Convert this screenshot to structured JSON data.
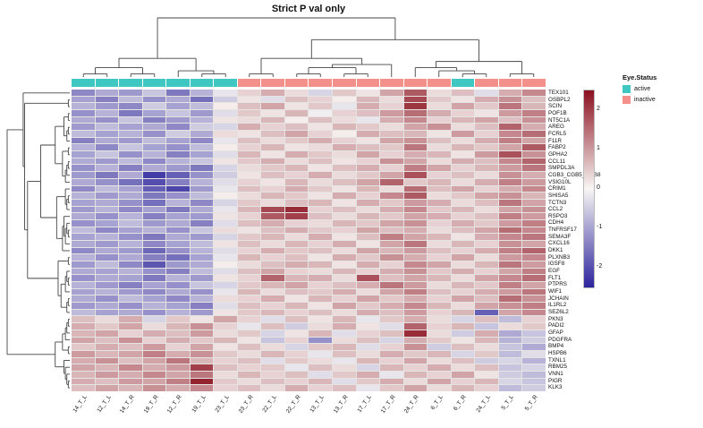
{
  "title": "Strict P val only",
  "legend": {
    "annotation_title": "Eye.Status",
    "items": [
      {
        "label": "active",
        "color": "#3FC7C2"
      },
      {
        "label": "inactive",
        "color": "#F3908C"
      }
    ],
    "scale_ticks": [
      2,
      1,
      0,
      -1,
      -2
    ]
  },
  "colors": {
    "positive": "#8B111F",
    "negative": "#2C249C",
    "mid": "#F8F6F4",
    "grid": "#E6E4E2",
    "dendro": "#444444"
  },
  "chart_data": {
    "type": "heatmap",
    "title": "Strict P val only",
    "scale_min": -2.5,
    "scale_max": 2.5,
    "columns": [
      "14_T_L",
      "12_T_L",
      "14_T_R",
      "19_T_R",
      "12_T_R",
      "19_T_L",
      "23_T_L",
      "23_T_R",
      "22_T_L",
      "22_T_R",
      "13_T_L",
      "13_T_R",
      "17_T_L",
      "17_T_R",
      "24_T_R",
      "6_T_L",
      "6_T_R",
      "24_T_L",
      "5_T_L",
      "5_T_R"
    ],
    "column_status": [
      "active",
      "active",
      "active",
      "active",
      "active",
      "active",
      "active",
      "inactive",
      "inactive",
      "inactive",
      "inactive",
      "inactive",
      "inactive",
      "inactive",
      "inactive",
      "inactive",
      "active",
      "inactive",
      "inactive",
      "inactive"
    ],
    "rows": [
      "TEX101",
      "OSBPL2",
      "SCIN",
      "POF1B",
      "NT5C1A",
      "AREG",
      "FCRL5",
      "F11R",
      "FABP2",
      "GPHA2",
      "CCL11",
      "SMPDL3A",
      "CGB3_CGB5_CGB8",
      "VSIG10L",
      "CRIM1",
      "SHISA5",
      "TCTN3",
      "CCL2",
      "RSPO3",
      "CDH4",
      "TNFRSF17",
      "SEMA3F",
      "CXCL16",
      "DKK1",
      "PLXNB3",
      "IGSF8",
      "EGF",
      "FLT1",
      "PTPRS",
      "WIF1",
      "JCHAIN",
      "IL1RL2",
      "SEZ6L2",
      "PKN3",
      "PADI2",
      "GFAP",
      "PDGFRA",
      "BMP4",
      "HSPB6",
      "TXNL1",
      "RBM25",
      "VNN1",
      "PIGR",
      "KLK3"
    ],
    "values": [
      [
        -1.3,
        -0.9,
        -1.1,
        -0.6,
        -1.5,
        -0.8,
        -0.2,
        0.4,
        0.8,
        0.3,
        -0.4,
        0.5,
        0.2,
        0.9,
        1.7,
        0.3,
        0.6,
        -0.3,
        0.8,
        1.2
      ],
      [
        -1.0,
        -1.4,
        -0.7,
        -1.2,
        -0.9,
        -1.6,
        -0.5,
        0.2,
        -0.3,
        0.6,
        0.4,
        0.1,
        0.7,
        0.3,
        1.9,
        0.5,
        0.2,
        0.8,
        1.1,
        0.6
      ],
      [
        -0.8,
        -1.1,
        -1.3,
        -0.5,
        -1.0,
        -0.7,
        0.1,
        0.6,
        0.9,
        0.2,
        0.5,
        -0.2,
        0.8,
        0.4,
        2.1,
        0.3,
        0.9,
        0.5,
        1.4,
        0.7
      ],
      [
        -1.2,
        -0.8,
        -1.5,
        -1.0,
        -0.6,
        -1.1,
        -0.3,
        0.5,
        0.2,
        0.7,
        -0.1,
        0.4,
        0.6,
        1.0,
        1.5,
        0.8,
        0.4,
        0.2,
        1.0,
        1.3
      ],
      [
        -0.9,
        -1.2,
        -0.6,
        -1.4,
        -1.1,
        -0.8,
        0.2,
        0.3,
        0.7,
        0.1,
        0.6,
        0.3,
        -0.2,
        0.8,
        1.2,
        0.4,
        0.7,
        0.9,
        0.6,
        1.1
      ],
      [
        -1.1,
        -0.7,
        -1.0,
        -0.9,
        -1.3,
        -0.5,
        -0.4,
        0.8,
        0.4,
        0.6,
        0.2,
        0.7,
        0.5,
        0.3,
        0.9,
        1.1,
        0.3,
        0.6,
        1.6,
        0.8
      ],
      [
        -0.7,
        -1.0,
        -0.8,
        -1.2,
        -0.5,
        -0.9,
        0.3,
        0.2,
        0.6,
        0.9,
        0.4,
        0.1,
        0.8,
        0.6,
        0.7,
        0.2,
        1.0,
        0.4,
        1.2,
        1.5
      ],
      [
        -1.4,
        -0.9,
        -1.1,
        -0.7,
        -1.0,
        -1.3,
        -0.2,
        0.6,
        0.3,
        0.5,
        0.8,
        0.4,
        0.2,
        0.9,
        1.1,
        0.6,
        0.3,
        0.8,
        1.3,
        0.9
      ],
      [
        -0.8,
        -1.3,
        -0.6,
        -1.0,
        -1.2,
        -0.7,
        0.1,
        0.4,
        0.7,
        0.2,
        0.3,
        0.8,
        0.6,
        0.5,
        1.4,
        0.3,
        0.7,
        0.5,
        0.9,
        1.7
      ],
      [
        -1.0,
        -0.6,
        -1.2,
        -0.8,
        -1.4,
        -1.0,
        -0.3,
        0.7,
        0.2,
        0.8,
        0.5,
        0.3,
        0.9,
        0.4,
        0.8,
        0.7,
        0.2,
        1.0,
        1.8,
        1.1
      ],
      [
        -0.9,
        -1.1,
        -0.7,
        -1.3,
        -0.8,
        -0.6,
        0.2,
        0.5,
        0.8,
        0.3,
        0.6,
        0.2,
        0.4,
        1.1,
        0.9,
        0.3,
        0.8,
        0.6,
        1.2,
        1.6
      ],
      [
        -1.2,
        -0.8,
        -1.4,
        -0.9,
        -1.1,
        -1.5,
        -0.4,
        0.3,
        0.5,
        0.7,
        0.2,
        0.6,
        0.8,
        0.4,
        1.3,
        0.9,
        0.4,
        0.7,
        1.0,
        1.4
      ],
      [
        -1.1,
        -1.5,
        -0.9,
        -2.2,
        -1.8,
        -1.2,
        -0.5,
        0.2,
        0.6,
        0.4,
        0.8,
        0.3,
        0.5,
        0.9,
        1.8,
        0.4,
        0.6,
        0.3,
        1.1,
        0.8
      ],
      [
        -0.9,
        -1.2,
        -1.6,
        -2.0,
        -1.4,
        -0.8,
        -0.3,
        0.4,
        0.2,
        0.7,
        0.3,
        0.6,
        0.9,
        1.6,
        0.5,
        0.7,
        0.3,
        0.8,
        1.3,
        1.0
      ],
      [
        -1.3,
        -0.7,
        -1.0,
        -1.8,
        -2.1,
        -1.1,
        -0.2,
        0.6,
        0.4,
        0.8,
        0.5,
        0.2,
        0.7,
        0.3,
        1.5,
        0.6,
        0.9,
        0.4,
        0.8,
        1.2
      ],
      [
        -0.8,
        -1.1,
        -0.9,
        -1.5,
        -1.2,
        -0.7,
        0.1,
        0.3,
        0.7,
        0.5,
        0.2,
        0.8,
        0.4,
        1.2,
        1.7,
        0.3,
        0.5,
        0.9,
        1.1,
        0.7
      ],
      [
        -1.0,
        -0.9,
        -1.2,
        -1.6,
        -0.8,
        -1.3,
        -0.4,
        0.5,
        0.3,
        0.6,
        0.7,
        0.2,
        0.8,
        0.5,
        1.0,
        0.8,
        0.3,
        0.6,
        1.4,
        0.9
      ],
      [
        -1.1,
        -0.8,
        -1.3,
        -1.0,
        -1.5,
        -0.9,
        -0.2,
        0.7,
        1.9,
        2.2,
        0.4,
        0.6,
        0.3,
        0.8,
        1.2,
        0.5,
        0.7,
        0.3,
        0.9,
        1.1
      ],
      [
        -0.9,
        -1.2,
        -0.8,
        -1.4,
        -1.0,
        -1.1,
        0.2,
        0.4,
        1.7,
        2.0,
        0.6,
        0.3,
        0.7,
        0.5,
        0.9,
        0.8,
        0.4,
        0.6,
        1.3,
        1.0
      ],
      [
        -1.2,
        -1.0,
        -0.7,
        -1.1,
        -0.9,
        -1.4,
        -0.3,
        0.6,
        0.8,
        0.4,
        0.3,
        0.7,
        0.5,
        0.9,
        1.1,
        0.4,
        0.8,
        0.5,
        1.0,
        1.3
      ],
      [
        -0.7,
        -1.3,
        -1.0,
        -0.8,
        -1.2,
        -0.6,
        0.3,
        0.2,
        0.6,
        0.8,
        0.5,
        0.4,
        0.9,
        0.6,
        0.8,
        0.3,
        0.6,
        0.9,
        1.5,
        1.2
      ],
      [
        -1.0,
        -0.8,
        -1.2,
        -1.5,
        -0.9,
        -1.1,
        -0.4,
        0.5,
        0.7,
        0.3,
        0.8,
        0.2,
        0.6,
        1.3,
        0.9,
        0.7,
        0.2,
        0.8,
        1.2,
        1.4
      ],
      [
        -0.9,
        -1.1,
        -0.8,
        -1.3,
        -1.0,
        -0.7,
        0.2,
        0.6,
        0.3,
        0.7,
        0.4,
        0.8,
        0.2,
        0.9,
        1.4,
        0.3,
        0.7,
        0.4,
        1.1,
        0.9
      ],
      [
        -1.3,
        -0.9,
        -1.1,
        -1.7,
        -1.2,
        -0.8,
        -0.3,
        0.4,
        0.8,
        0.5,
        0.6,
        0.3,
        0.9,
        0.7,
        1.0,
        0.6,
        0.4,
        0.8,
        1.3,
        1.6
      ],
      [
        -0.8,
        -1.2,
        -0.9,
        -1.4,
        -1.6,
        -1.0,
        -0.2,
        0.7,
        0.4,
        0.6,
        0.2,
        0.8,
        0.5,
        1.1,
        0.8,
        0.4,
        0.9,
        0.3,
        1.0,
        1.2
      ],
      [
        -1.1,
        -0.7,
        -1.3,
        -1.9,
        -1.1,
        -0.9,
        0.1,
        0.3,
        0.6,
        0.8,
        0.7,
        0.2,
        0.8,
        0.4,
        1.2,
        0.9,
        0.3,
        0.7,
        1.4,
        1.0
      ],
      [
        -0.9,
        -1.0,
        -0.8,
        -1.2,
        -1.4,
        -0.7,
        -0.3,
        0.6,
        0.9,
        0.4,
        0.3,
        0.7,
        0.4,
        0.8,
        1.1,
        0.5,
        0.8,
        0.4,
        0.9,
        1.3
      ],
      [
        -1.2,
        -0.9,
        -1.0,
        -1.5,
        -0.8,
        -1.1,
        0.2,
        0.4,
        1.6,
        0.7,
        0.8,
        0.3,
        1.8,
        0.6,
        0.9,
        0.7,
        0.3,
        0.9,
        1.2,
        1.5
      ],
      [
        -0.8,
        -1.1,
        -1.4,
        -1.0,
        -1.2,
        -0.6,
        -0.4,
        0.5,
        0.7,
        0.9,
        0.4,
        0.6,
        0.8,
        1.4,
        1.0,
        0.3,
        0.7,
        0.5,
        1.3,
        0.9
      ],
      [
        -1.0,
        -0.8,
        -1.1,
        -1.3,
        -0.9,
        -1.2,
        -0.2,
        0.7,
        0.3,
        0.6,
        0.5,
        0.8,
        0.3,
        0.9,
        1.3,
        0.6,
        0.4,
        0.8,
        1.0,
        1.4
      ],
      [
        -0.9,
        -1.2,
        -0.7,
        -1.0,
        -1.3,
        -0.8,
        0.3,
        0.4,
        0.8,
        0.2,
        0.7,
        0.4,
        0.9,
        0.5,
        0.8,
        0.4,
        0.9,
        0.6,
        1.5,
        1.1
      ],
      [
        -1.1,
        -0.9,
        -1.2,
        -0.8,
        -1.0,
        -1.4,
        -0.3,
        0.6,
        0.4,
        0.7,
        0.2,
        0.9,
        0.5,
        0.8,
        1.2,
        0.7,
        0.3,
        0.9,
        1.1,
        1.3
      ],
      [
        -0.7,
        -1.0,
        -0.9,
        -1.2,
        -0.8,
        -1.1,
        0.2,
        0.5,
        0.7,
        0.4,
        0.6,
        0.3,
        0.8,
        0.6,
        1.0,
        0.4,
        0.7,
        -1.8,
        0.9,
        1.2
      ],
      [
        0.6,
        0.3,
        0.8,
        -0.4,
        0.5,
        0.2,
        0.9,
        0.4,
        -0.3,
        0.6,
        0.2,
        0.7,
        -0.2,
        0.5,
        0.8,
        0.3,
        -0.4,
        0.6,
        -0.7,
        0.4
      ],
      [
        0.8,
        0.5,
        0.9,
        0.3,
        0.7,
        1.1,
        0.4,
        -0.2,
        0.6,
        -0.5,
        0.3,
        0.8,
        0.2,
        -0.3,
        1.6,
        0.4,
        0.7,
        -0.6,
        0.3,
        0.5
      ],
      [
        0.7,
        0.9,
        0.4,
        0.8,
        0.6,
        1.0,
        0.3,
        0.5,
        -0.4,
        0.2,
        0.7,
        -0.3,
        0.4,
        0.6,
        2.2,
        0.3,
        -0.5,
        0.8,
        -0.9,
        -0.6
      ],
      [
        0.9,
        0.6,
        1.1,
        0.4,
        0.8,
        0.5,
        0.7,
        0.2,
        -0.6,
        0.4,
        -1.2,
        0.3,
        0.6,
        -0.4,
        0.8,
        0.5,
        0.2,
        0.7,
        -0.8,
        -0.5
      ],
      [
        0.5,
        0.8,
        0.6,
        1.0,
        0.4,
        0.9,
        0.2,
        0.6,
        0.3,
        -0.4,
        0.5,
        0.7,
        -0.3,
        0.4,
        1.1,
        -0.5,
        0.6,
        0.3,
        -0.6,
        -0.9
      ],
      [
        1.0,
        0.7,
        0.9,
        1.3,
        0.8,
        1.1,
        0.5,
        0.3,
        0.7,
        0.4,
        -0.2,
        0.6,
        0.3,
        0.8,
        0.5,
        0.7,
        -0.4,
        0.5,
        -0.7,
        -0.3
      ],
      [
        0.8,
        1.1,
        0.6,
        0.9,
        1.4,
        0.7,
        0.4,
        0.6,
        -0.3,
        0.5,
        0.3,
        -0.2,
        0.7,
        0.4,
        0.9,
        0.3,
        0.6,
        -0.5,
        -0.4,
        -0.8
      ],
      [
        0.9,
        0.7,
        1.2,
        0.8,
        1.0,
        2.0,
        0.6,
        0.4,
        0.5,
        -0.2,
        0.6,
        0.3,
        -0.4,
        0.7,
        0.4,
        0.8,
        0.3,
        0.6,
        -0.6,
        -0.4
      ],
      [
        0.7,
        1.0,
        0.8,
        1.2,
        0.9,
        1.4,
        0.3,
        0.7,
        0.4,
        0.6,
        -0.3,
        0.5,
        0.8,
        -0.2,
        0.7,
        0.4,
        0.9,
        0.2,
        -0.5,
        -0.7
      ],
      [
        0.8,
        0.6,
        1.0,
        0.9,
        1.3,
        2.3,
        0.5,
        0.3,
        0.6,
        0.4,
        0.7,
        -0.3,
        0.5,
        0.8,
        0.3,
        0.9,
        0.4,
        0.7,
        -0.4,
        -0.6
      ],
      [
        0.6,
        0.9,
        0.7,
        1.1,
        0.8,
        1.2,
        0.4,
        0.6,
        0.3,
        0.8,
        0.4,
        0.6,
        -0.2,
        0.5,
        0.9,
        0.3,
        0.7,
        0.4,
        -0.7,
        -0.5
      ]
    ]
  }
}
